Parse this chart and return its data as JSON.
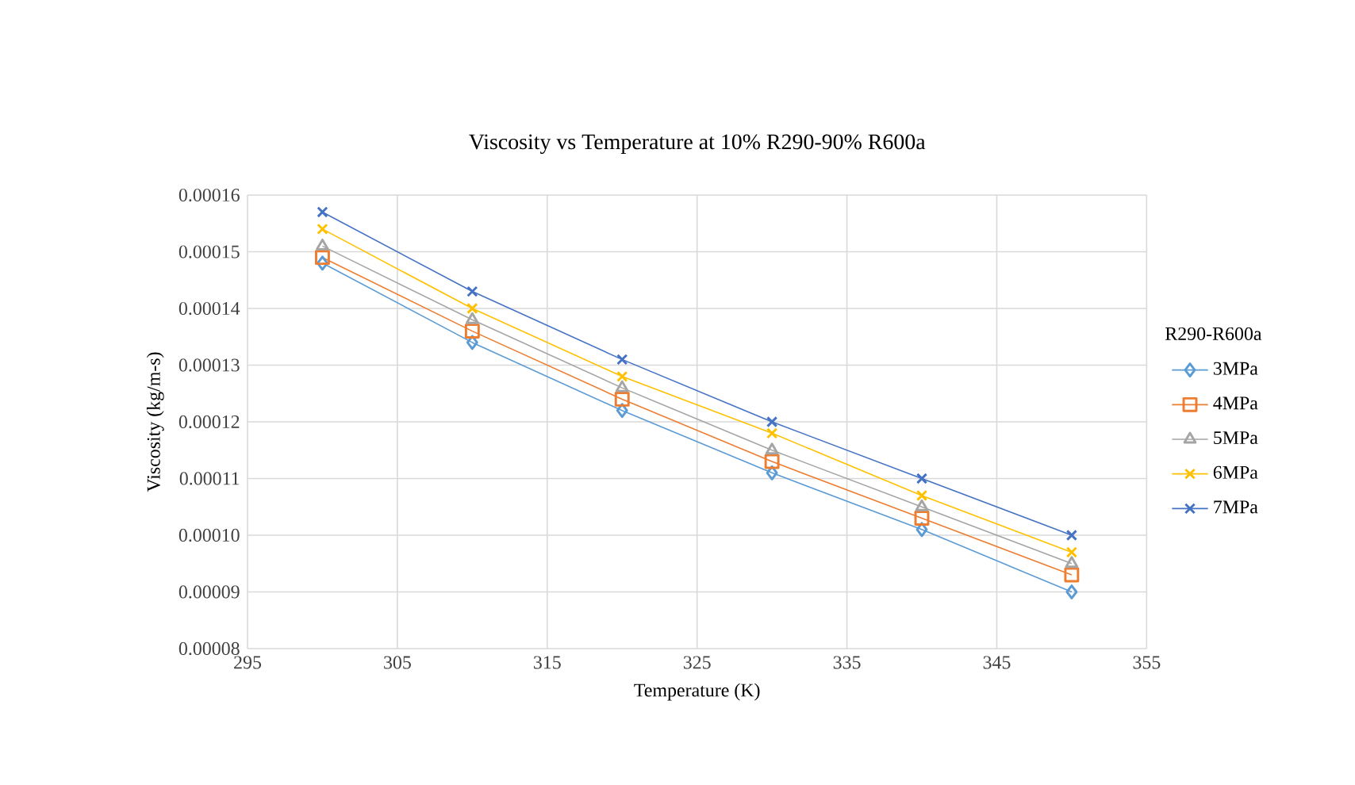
{
  "chart_data": {
    "type": "line",
    "title": "Viscosity  vs Temperature  at 10% R290-90% R600a",
    "xlabel": "Temperature (K)",
    "ylabel": "Viscosity (kg/m-s)",
    "legend_title": "R290-R600a",
    "x": [
      300,
      310,
      320,
      330,
      340,
      350
    ],
    "series": [
      {
        "name": "3MPa",
        "color": "#5b9bd5",
        "marker": "diamond",
        "values": [
          0.000148,
          0.000134,
          0.000122,
          0.000111,
          0.000101,
          9e-05
        ]
      },
      {
        "name": "4MPa",
        "color": "#ed7d31",
        "marker": "square",
        "values": [
          0.000149,
          0.000136,
          0.000124,
          0.000113,
          0.000103,
          9.3e-05
        ]
      },
      {
        "name": "5MPa",
        "color": "#a5a5a5",
        "marker": "triangle",
        "values": [
          0.000151,
          0.000138,
          0.000126,
          0.000115,
          0.000105,
          9.5e-05
        ]
      },
      {
        "name": "6MPa",
        "color": "#ffc000",
        "marker": "cross",
        "values": [
          0.000154,
          0.00014,
          0.000128,
          0.000118,
          0.000107,
          9.7e-05
        ]
      },
      {
        "name": "7MPa",
        "color": "#4472c4",
        "marker": "cross",
        "values": [
          0.000157,
          0.000143,
          0.000131,
          0.00012,
          0.00011,
          0.0001
        ]
      }
    ],
    "xlim": [
      295,
      355
    ],
    "xticks": [
      295,
      305,
      315,
      325,
      335,
      345,
      355
    ],
    "ylim": [
      8e-05,
      0.00016
    ],
    "yticks": [
      {
        "value": 8e-05,
        "label": "0.00008"
      },
      {
        "value": 9e-05,
        "label": "0.00009"
      },
      {
        "value": 0.0001,
        "label": "0.00010"
      },
      {
        "value": 0.00011,
        "label": "0.00011"
      },
      {
        "value": 0.00012,
        "label": "0.00012"
      },
      {
        "value": 0.00013,
        "label": "0.00013"
      },
      {
        "value": 0.00014,
        "label": "0.00014"
      },
      {
        "value": 0.00015,
        "label": "0.00015"
      },
      {
        "value": 0.00016,
        "label": "0.00016"
      }
    ],
    "grid": true,
    "legend": "right",
    "line_style": "solid"
  }
}
